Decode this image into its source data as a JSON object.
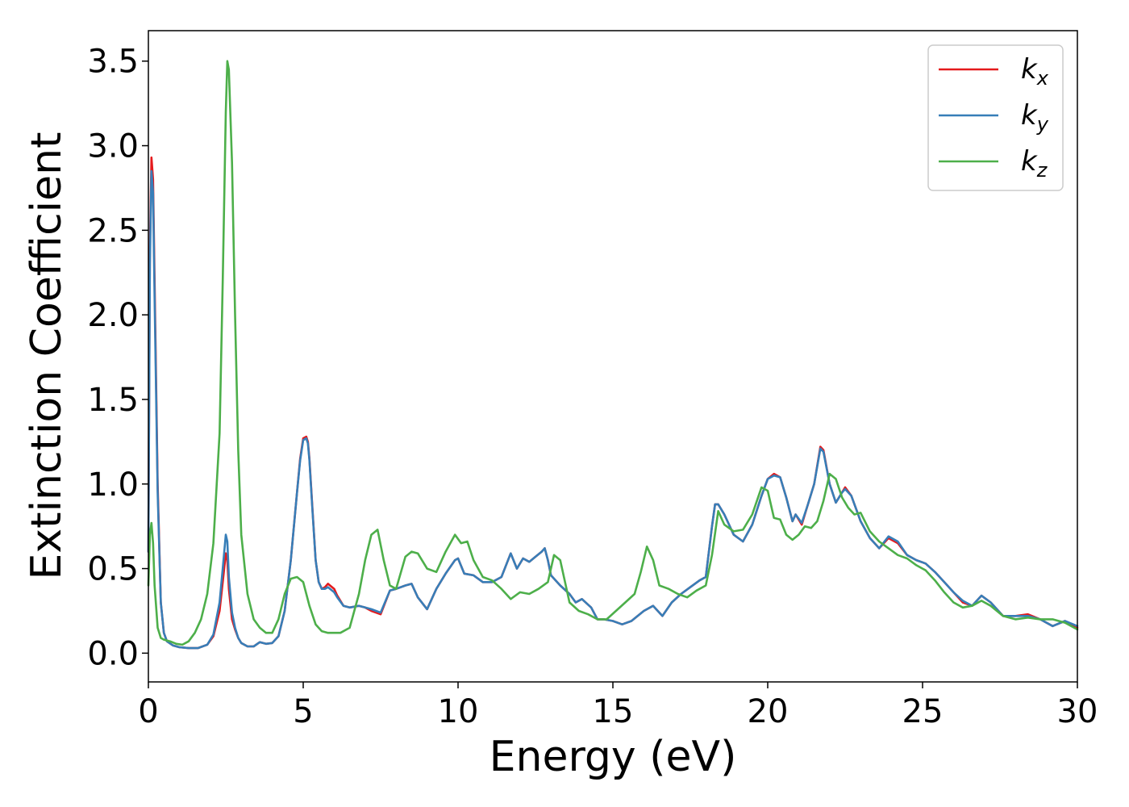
{
  "chart_data": {
    "type": "line",
    "title": "",
    "xlabel": "Energy (eV)",
    "ylabel": "Extinction Coefficient",
    "xlim": [
      0,
      30
    ],
    "ylim": [
      -0.17,
      3.68
    ],
    "xticks": [
      0,
      5,
      10,
      15,
      20,
      25,
      30
    ],
    "xtick_labels": [
      "0",
      "5",
      "10",
      "15",
      "20",
      "25",
      "30"
    ],
    "yticks": [
      0.0,
      0.5,
      1.0,
      1.5,
      2.0,
      2.5,
      3.0,
      3.5
    ],
    "ytick_labels": [
      "0.0",
      "0.5",
      "1.0",
      "1.5",
      "2.0",
      "2.5",
      "3.0",
      "3.5"
    ],
    "grid": false,
    "legend_position": "top-right",
    "series": [
      {
        "name": "k",
        "subscript": "x",
        "color": "#e41a1c",
        "x": [
          0,
          0.05,
          0.1,
          0.15,
          0.2,
          0.3,
          0.4,
          0.5,
          0.6,
          0.8,
          1.0,
          1.3,
          1.6,
          1.9,
          2.1,
          2.3,
          2.4,
          2.5,
          2.55,
          2.6,
          2.7,
          2.8,
          2.9,
          3.0,
          3.2,
          3.4,
          3.6,
          3.8,
          4.0,
          4.2,
          4.4,
          4.6,
          4.8,
          4.9,
          5.0,
          5.1,
          5.15,
          5.2,
          5.3,
          5.4,
          5.5,
          5.6,
          5.7,
          5.8,
          6.0,
          6.1,
          6.3,
          6.5,
          6.8,
          7.0,
          7.2,
          7.5,
          7.8,
          8.0,
          8.3,
          8.5,
          8.7,
          9.0,
          9.3,
          9.6,
          9.9,
          10.0,
          10.2,
          10.5,
          10.8,
          11.1,
          11.4,
          11.7,
          11.9,
          12.1,
          12.3,
          12.5,
          12.7,
          12.8,
          12.9,
          13.0,
          13.3,
          13.6,
          13.8,
          14.0,
          14.3,
          14.5,
          14.7,
          15.0,
          15.3,
          15.6,
          16.0,
          16.3,
          16.6,
          16.9,
          17.2,
          17.5,
          17.8,
          18.0,
          18.2,
          18.3,
          18.4,
          18.6,
          18.9,
          19.2,
          19.5,
          19.8,
          20.0,
          20.2,
          20.4,
          20.6,
          20.8,
          20.9,
          21.1,
          21.3,
          21.5,
          21.7,
          21.8,
          22.0,
          22.2,
          22.4,
          22.5,
          22.7,
          23.0,
          23.3,
          23.6,
          23.9,
          24.2,
          24.5,
          24.8,
          25.1,
          25.4,
          25.7,
          26.0,
          26.3,
          26.6,
          26.9,
          27.2,
          27.6,
          28.0,
          28.4,
          28.8,
          29.2,
          29.6,
          30.0
        ],
        "y": [
          0.6,
          2.4,
          2.93,
          2.8,
          2.2,
          1.0,
          0.3,
          0.12,
          0.07,
          0.045,
          0.035,
          0.03,
          0.03,
          0.05,
          0.1,
          0.25,
          0.42,
          0.59,
          0.55,
          0.38,
          0.2,
          0.14,
          0.09,
          0.06,
          0.04,
          0.04,
          0.065,
          0.055,
          0.06,
          0.1,
          0.25,
          0.55,
          0.95,
          1.15,
          1.27,
          1.28,
          1.25,
          1.15,
          0.85,
          0.55,
          0.42,
          0.38,
          0.39,
          0.41,
          0.38,
          0.34,
          0.28,
          0.27,
          0.28,
          0.27,
          0.25,
          0.23,
          0.37,
          0.38,
          0.4,
          0.41,
          0.33,
          0.26,
          0.38,
          0.47,
          0.55,
          0.56,
          0.47,
          0.46,
          0.42,
          0.42,
          0.45,
          0.59,
          0.5,
          0.56,
          0.54,
          0.57,
          0.6,
          0.62,
          0.55,
          0.46,
          0.4,
          0.35,
          0.3,
          0.32,
          0.27,
          0.2,
          0.2,
          0.19,
          0.17,
          0.19,
          0.25,
          0.28,
          0.22,
          0.3,
          0.35,
          0.39,
          0.43,
          0.45,
          0.75,
          0.88,
          0.88,
          0.82,
          0.7,
          0.66,
          0.76,
          0.93,
          1.03,
          1.06,
          1.04,
          0.92,
          0.78,
          0.82,
          0.76,
          0.88,
          1.0,
          1.22,
          1.2,
          1.0,
          0.89,
          0.95,
          0.98,
          0.93,
          0.78,
          0.68,
          0.62,
          0.68,
          0.65,
          0.58,
          0.55,
          0.53,
          0.48,
          0.42,
          0.36,
          0.3,
          0.28,
          0.34,
          0.3,
          0.22,
          0.22,
          0.23,
          0.2,
          0.16,
          0.19,
          0.15
        ]
      },
      {
        "name": "k",
        "subscript": "y",
        "color": "#377eb8",
        "x": [
          0,
          0.05,
          0.1,
          0.15,
          0.2,
          0.3,
          0.4,
          0.5,
          0.6,
          0.8,
          1.0,
          1.3,
          1.6,
          1.9,
          2.1,
          2.3,
          2.4,
          2.5,
          2.55,
          2.6,
          2.7,
          2.8,
          2.9,
          3.0,
          3.2,
          3.4,
          3.6,
          3.8,
          4.0,
          4.2,
          4.4,
          4.6,
          4.8,
          4.9,
          5.0,
          5.1,
          5.15,
          5.2,
          5.3,
          5.4,
          5.5,
          5.6,
          5.7,
          5.8,
          6.0,
          6.1,
          6.3,
          6.5,
          6.8,
          7.0,
          7.2,
          7.5,
          7.8,
          8.0,
          8.3,
          8.5,
          8.7,
          9.0,
          9.3,
          9.6,
          9.9,
          10.0,
          10.2,
          10.5,
          10.8,
          11.1,
          11.4,
          11.7,
          11.9,
          12.1,
          12.3,
          12.5,
          12.7,
          12.8,
          12.9,
          13.0,
          13.3,
          13.6,
          13.8,
          14.0,
          14.3,
          14.5,
          14.7,
          15.0,
          15.3,
          15.6,
          16.0,
          16.3,
          16.6,
          16.9,
          17.2,
          17.5,
          17.8,
          18.0,
          18.2,
          18.3,
          18.4,
          18.6,
          18.9,
          19.2,
          19.5,
          19.8,
          20.0,
          20.2,
          20.4,
          20.6,
          20.8,
          20.9,
          21.1,
          21.3,
          21.5,
          21.7,
          21.8,
          22.0,
          22.2,
          22.4,
          22.5,
          22.7,
          23.0,
          23.3,
          23.6,
          23.9,
          24.2,
          24.5,
          24.8,
          25.1,
          25.4,
          25.7,
          26.0,
          26.3,
          26.6,
          26.9,
          27.2,
          27.6,
          28.0,
          28.4,
          28.8,
          29.2,
          29.6,
          30.0
        ],
        "y": [
          0.6,
          2.3,
          2.85,
          2.72,
          2.1,
          0.95,
          0.3,
          0.12,
          0.07,
          0.045,
          0.035,
          0.03,
          0.03,
          0.05,
          0.11,
          0.3,
          0.5,
          0.7,
          0.66,
          0.45,
          0.24,
          0.15,
          0.09,
          0.06,
          0.04,
          0.04,
          0.065,
          0.055,
          0.06,
          0.1,
          0.25,
          0.55,
          0.95,
          1.14,
          1.26,
          1.27,
          1.24,
          1.14,
          0.84,
          0.55,
          0.42,
          0.38,
          0.38,
          0.39,
          0.36,
          0.33,
          0.28,
          0.27,
          0.28,
          0.27,
          0.26,
          0.24,
          0.37,
          0.38,
          0.4,
          0.41,
          0.33,
          0.26,
          0.38,
          0.47,
          0.55,
          0.56,
          0.47,
          0.46,
          0.42,
          0.42,
          0.45,
          0.59,
          0.5,
          0.56,
          0.54,
          0.57,
          0.6,
          0.62,
          0.55,
          0.46,
          0.4,
          0.35,
          0.3,
          0.32,
          0.27,
          0.2,
          0.2,
          0.19,
          0.17,
          0.19,
          0.25,
          0.28,
          0.22,
          0.3,
          0.35,
          0.39,
          0.43,
          0.45,
          0.75,
          0.88,
          0.88,
          0.82,
          0.7,
          0.66,
          0.76,
          0.93,
          1.03,
          1.05,
          1.04,
          0.92,
          0.78,
          0.82,
          0.77,
          0.88,
          1.0,
          1.21,
          1.19,
          1.0,
          0.89,
          0.95,
          0.97,
          0.93,
          0.78,
          0.68,
          0.62,
          0.69,
          0.66,
          0.58,
          0.55,
          0.53,
          0.48,
          0.42,
          0.36,
          0.31,
          0.28,
          0.34,
          0.3,
          0.22,
          0.22,
          0.22,
          0.2,
          0.16,
          0.19,
          0.16
        ]
      },
      {
        "name": "k",
        "subscript": "z",
        "color": "#4daf4a",
        "x": [
          0,
          0.05,
          0.1,
          0.15,
          0.2,
          0.3,
          0.4,
          0.5,
          0.7,
          0.9,
          1.1,
          1.3,
          1.5,
          1.7,
          1.9,
          2.1,
          2.3,
          2.4,
          2.5,
          2.55,
          2.6,
          2.7,
          2.8,
          2.9,
          3.0,
          3.2,
          3.4,
          3.6,
          3.8,
          4.0,
          4.2,
          4.4,
          4.6,
          4.8,
          5.0,
          5.2,
          5.4,
          5.6,
          5.8,
          6.0,
          6.2,
          6.5,
          6.8,
          7.0,
          7.2,
          7.4,
          7.6,
          7.8,
          8.0,
          8.3,
          8.5,
          8.7,
          9.0,
          9.3,
          9.6,
          9.9,
          10.1,
          10.3,
          10.5,
          10.8,
          11.1,
          11.4,
          11.7,
          12.0,
          12.3,
          12.6,
          12.9,
          13.1,
          13.3,
          13.6,
          13.9,
          14.2,
          14.5,
          14.8,
          15.1,
          15.4,
          15.7,
          15.9,
          16.1,
          16.3,
          16.5,
          16.8,
          17.1,
          17.4,
          17.7,
          18.0,
          18.2,
          18.4,
          18.6,
          18.9,
          19.2,
          19.5,
          19.8,
          20.0,
          20.2,
          20.4,
          20.6,
          20.8,
          21.0,
          21.2,
          21.4,
          21.6,
          21.8,
          22.0,
          22.2,
          22.4,
          22.6,
          22.8,
          23.0,
          23.3,
          23.6,
          23.9,
          24.2,
          24.5,
          24.8,
          25.1,
          25.4,
          25.7,
          26.0,
          26.3,
          26.6,
          26.9,
          27.2,
          27.6,
          28.0,
          28.4,
          28.8,
          29.2,
          29.6,
          30.0
        ],
        "y": [
          0.4,
          0.7,
          0.77,
          0.65,
          0.4,
          0.15,
          0.09,
          0.08,
          0.07,
          0.055,
          0.05,
          0.07,
          0.12,
          0.2,
          0.35,
          0.65,
          1.3,
          2.2,
          3.2,
          3.5,
          3.45,
          2.9,
          2.0,
          1.2,
          0.7,
          0.35,
          0.2,
          0.15,
          0.12,
          0.12,
          0.2,
          0.35,
          0.44,
          0.45,
          0.42,
          0.28,
          0.17,
          0.13,
          0.12,
          0.12,
          0.12,
          0.15,
          0.35,
          0.55,
          0.7,
          0.73,
          0.55,
          0.4,
          0.38,
          0.57,
          0.6,
          0.59,
          0.5,
          0.48,
          0.6,
          0.7,
          0.65,
          0.66,
          0.55,
          0.45,
          0.43,
          0.38,
          0.32,
          0.36,
          0.35,
          0.38,
          0.42,
          0.58,
          0.55,
          0.3,
          0.25,
          0.23,
          0.2,
          0.2,
          0.25,
          0.3,
          0.35,
          0.48,
          0.63,
          0.55,
          0.4,
          0.38,
          0.35,
          0.33,
          0.37,
          0.4,
          0.58,
          0.84,
          0.76,
          0.72,
          0.73,
          0.82,
          0.98,
          0.96,
          0.8,
          0.79,
          0.7,
          0.67,
          0.7,
          0.75,
          0.74,
          0.78,
          0.9,
          1.06,
          1.03,
          0.92,
          0.86,
          0.82,
          0.83,
          0.72,
          0.66,
          0.62,
          0.58,
          0.56,
          0.52,
          0.49,
          0.43,
          0.36,
          0.3,
          0.27,
          0.28,
          0.31,
          0.28,
          0.22,
          0.2,
          0.21,
          0.2,
          0.2,
          0.18,
          0.14
        ]
      }
    ]
  }
}
